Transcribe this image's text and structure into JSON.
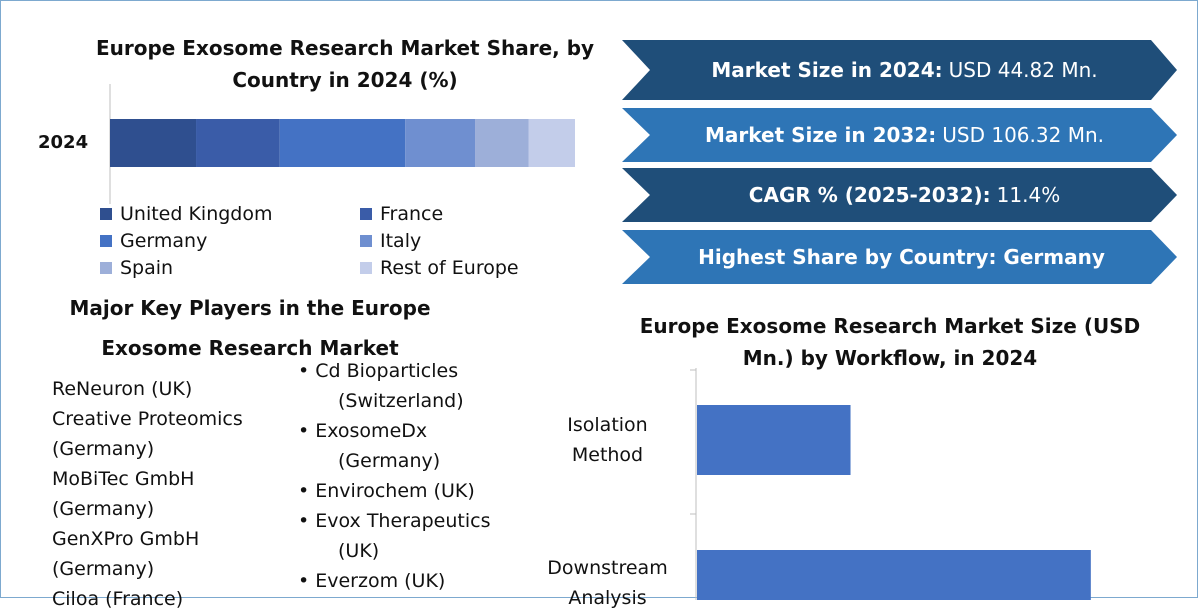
{
  "stacked_title": "Europe Exosome Research Market Share, by Country in 2024 (%)",
  "workflow_title": "Europe Exosome Research Market Size (USD Mn.) by Workflow, in 2024",
  "banners": [
    {
      "label": "Market Size in 2024:",
      "value": "USD 44.82 Mn.",
      "color": "#1f4e79"
    },
    {
      "label": "Market Size in 2032:",
      "value": "USD 106.32 Mn.",
      "color": "#2e75b6"
    },
    {
      "label": "CAGR % (2025-2032):",
      "value": "11.4%",
      "color": "#1f4e79"
    },
    {
      "label": "Highest Share by Country: Germany",
      "value": "",
      "color": "#2e75b6"
    }
  ],
  "key_players": {
    "title_line1": "Major Key Players in the Europe",
    "title_line2": "Exosome Research Market",
    "left_lines": [
      "ReNeuron (UK)",
      "Creative Proteomics",
      "(Germany)",
      "MoBiTec GmbH",
      "(Germany)",
      "GenXPro GmbH",
      "(Germany)",
      "Ciloa (France)"
    ],
    "right_items": [
      {
        "name": "Cd Bioparticles",
        "cont": "(Switzerland)"
      },
      {
        "name": "ExosomeDx",
        "cont": "(Germany)"
      },
      {
        "name": "Envirochem (UK)",
        "cont": ""
      },
      {
        "name": "Evox Therapeutics",
        "cont": "(UK)"
      },
      {
        "name": "Everzom (UK)",
        "cont": ""
      }
    ]
  },
  "chart_data": [
    {
      "type": "bar",
      "orientation": "horizontal-stacked",
      "title": "Europe Exosome Research Market Share, by Country in 2024 (%)",
      "categories": [
        "2024"
      ],
      "series": [
        {
          "name": "United Kingdom",
          "values": [
            18.5
          ],
          "color": "#2f4f8f"
        },
        {
          "name": "France",
          "values": [
            18
          ],
          "color": "#3a5ca8"
        },
        {
          "name": "Germany",
          "values": [
            27
          ],
          "color": "#4472c4"
        },
        {
          "name": "Italy",
          "values": [
            15
          ],
          "color": "#6f8fd0"
        },
        {
          "name": "Spain",
          "values": [
            11.5
          ],
          "color": "#9dafd9"
        },
        {
          "name": "Rest of Europe",
          "values": [
            10
          ],
          "color": "#c3cdea"
        }
      ],
      "legend_position": "bottom"
    },
    {
      "type": "bar",
      "orientation": "horizontal",
      "title": "Europe Exosome Research Market Size (USD Mn.) by Workflow, in 2024",
      "categories": [
        "Isolation Method",
        "Downstream Analysis"
      ],
      "category_lines": [
        [
          "Isolation",
          "Method"
        ],
        [
          "Downstream",
          "Analysis"
        ]
      ],
      "values": [
        11.5,
        29.5
      ],
      "color": "#4472c4"
    }
  ]
}
